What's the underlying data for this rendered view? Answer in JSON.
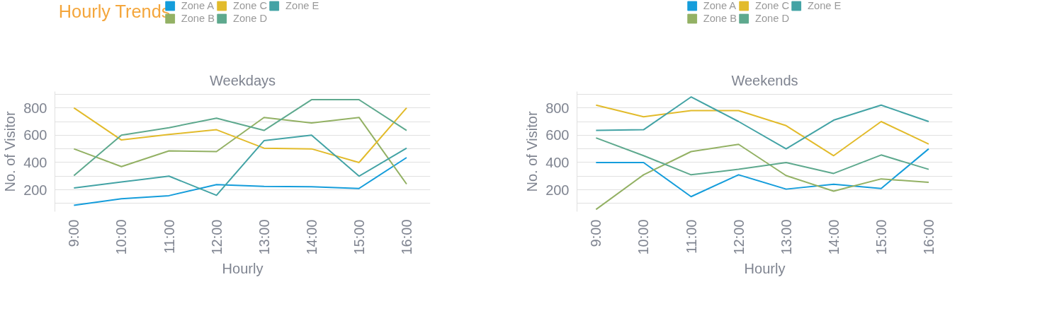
{
  "chart_data": [
    {
      "type": "line",
      "title": "Weekdays",
      "annotations": [
        "Hourly Trends"
      ],
      "xlabel": "Hourly",
      "ylabel": "No. of Visitor",
      "categories": [
        "9:00",
        "10:00",
        "11:00",
        "12:00",
        "13:00",
        "14:00",
        "15:00",
        "16:00"
      ],
      "ylim": [
        40,
        920
      ],
      "yticks": [
        {
          "value": 100,
          "label": null
        },
        200,
        {
          "value": 300,
          "label": null
        },
        400,
        {
          "value": 500,
          "label": null
        },
        600,
        {
          "value": 700,
          "label": null
        },
        800,
        {
          "value": 900,
          "label": null
        }
      ],
      "grid": "y",
      "legend": "top",
      "marker": "none",
      "line_style": "solid",
      "series": [
        {
          "name": "Zone A",
          "color": "#159ddb",
          "values": [
            87,
            134,
            157,
            238,
            225,
            223,
            210,
            436
          ]
        },
        {
          "name": "Zone B",
          "color": "#93b164",
          "values": [
            500,
            370,
            485,
            480,
            730,
            690,
            730,
            242
          ]
        },
        {
          "name": "Zone C",
          "color": "#e2bb2b",
          "values": [
            800,
            565,
            605,
            640,
            505,
            500,
            400,
            800
          ]
        },
        {
          "name": "Zone D",
          "color": "#5ea98e",
          "values": [
            304,
            600,
            655,
            725,
            635,
            860,
            860,
            635
          ]
        },
        {
          "name": "Zone E",
          "color": "#43a3a5",
          "values": [
            213,
            257,
            300,
            160,
            560,
            600,
            300,
            505
          ]
        }
      ]
    },
    {
      "type": "line",
      "title": "Weekends",
      "xlabel": "Hourly",
      "ylabel": "No. of Visitor",
      "categories": [
        "9:00",
        "10:00",
        "11:00",
        "12:00",
        "13:00",
        "14:00",
        "15:00",
        "16:00"
      ],
      "ylim": [
        40,
        920
      ],
      "yticks": [
        {
          "value": 100,
          "label": null
        },
        200,
        {
          "value": 300,
          "label": null
        },
        400,
        {
          "value": 500,
          "label": null
        },
        600,
        {
          "value": 700,
          "label": null
        },
        800,
        {
          "value": 900,
          "label": null
        }
      ],
      "grid": "y",
      "legend": "top",
      "marker": "none",
      "line_style": "solid",
      "series": [
        {
          "name": "Zone A",
          "color": "#159ddb",
          "values": [
            400,
            400,
            150,
            310,
            205,
            240,
            210,
            500
          ]
        },
        {
          "name": "Zone B",
          "color": "#93b164",
          "values": [
            56,
            310,
            480,
            533,
            304,
            190,
            280,
            255
          ]
        },
        {
          "name": "Zone C",
          "color": "#e2bb2b",
          "values": [
            820,
            735,
            780,
            780,
            670,
            450,
            700,
            535
          ]
        },
        {
          "name": "Zone D",
          "color": "#5ea98e",
          "values": [
            580,
            450,
            310,
            350,
            400,
            320,
            455,
            350
          ]
        },
        {
          "name": "Zone E",
          "color": "#43a3a5",
          "values": [
            635,
            640,
            880,
            700,
            500,
            710,
            820,
            700
          ]
        }
      ]
    }
  ]
}
